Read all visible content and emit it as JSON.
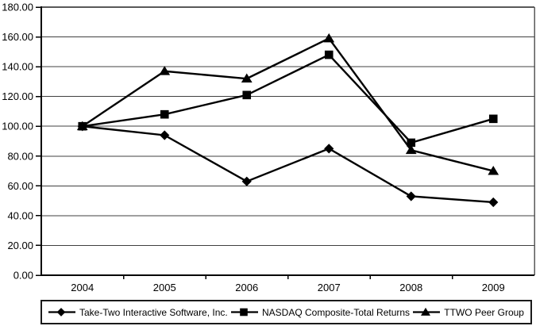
{
  "chart_data": {
    "type": "line",
    "title": "",
    "xlabel": "",
    "ylabel": "",
    "categories": [
      "2004",
      "2005",
      "2006",
      "2007",
      "2008",
      "2009"
    ],
    "series": [
      {
        "name": "Take-Two Interactive Software, Inc.",
        "marker": "diamond",
        "values": [
          100,
          94,
          63,
          85,
          53,
          49
        ]
      },
      {
        "name": "NASDAQ Composite-Total Returns",
        "marker": "square",
        "values": [
          100,
          108,
          121,
          148,
          89,
          105
        ]
      },
      {
        "name": "TTWO Peer Group",
        "marker": "triangle",
        "values": [
          100,
          137,
          132,
          159,
          84,
          70
        ]
      }
    ],
    "ylim": [
      0,
      180
    ],
    "ytick_step": 20,
    "ytick_labels": [
      "0.00",
      "20.00",
      "40.00",
      "60.00",
      "80.00",
      "100.00",
      "120.00",
      "140.00",
      "160.00",
      "180.00"
    ],
    "grid": true,
    "legend_position": "bottom",
    "colors": {
      "line": "#000000",
      "marker": "#000000",
      "grid": "#404040",
      "plot_border": "#595959",
      "axis": "#000000",
      "text": "#000000",
      "background": "#ffffff"
    }
  }
}
